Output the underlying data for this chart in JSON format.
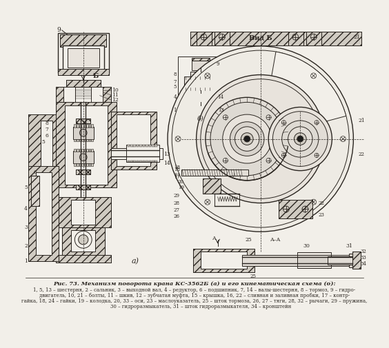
{
  "title_line1": "Рис. 73. Механизм поворота крана КС-3562Б (а) и его кинематическая схема (б):",
  "caption_line2": "1, 5, 13 – шестерня, 2 – сальник, 3 – выходной вал, 4 – редуктор, 6 – подшипник, 7, 14 – валы-шестерня, 8 – тормоз, 9 – гидро-",
  "caption_line3": "двигатель, 10, 21 – болты, 11 – шкив, 12 – зубчатая муфта, 15 – крышка, 16, 22 – сливная и заливная пробки, 17 – контр-",
  "caption_line4": "гайка, 18, 24 – гайки, 19 – колодка, 20, 33 – оси, 23 – маслоуказатель, 25 – шток тормоза, 26, 27 – тяги, 28, 32 – рычаги, 29 – пружина,",
  "caption_line5": "        30 – гидроразмыкатель, 31 – шток гидроразмыкателя, 34 – кронштейн",
  "bg_color": "#f2efe9",
  "drawing_color": "#2a2520",
  "fig_width": 5.64,
  "fig_height": 5.05,
  "dpi": 100
}
